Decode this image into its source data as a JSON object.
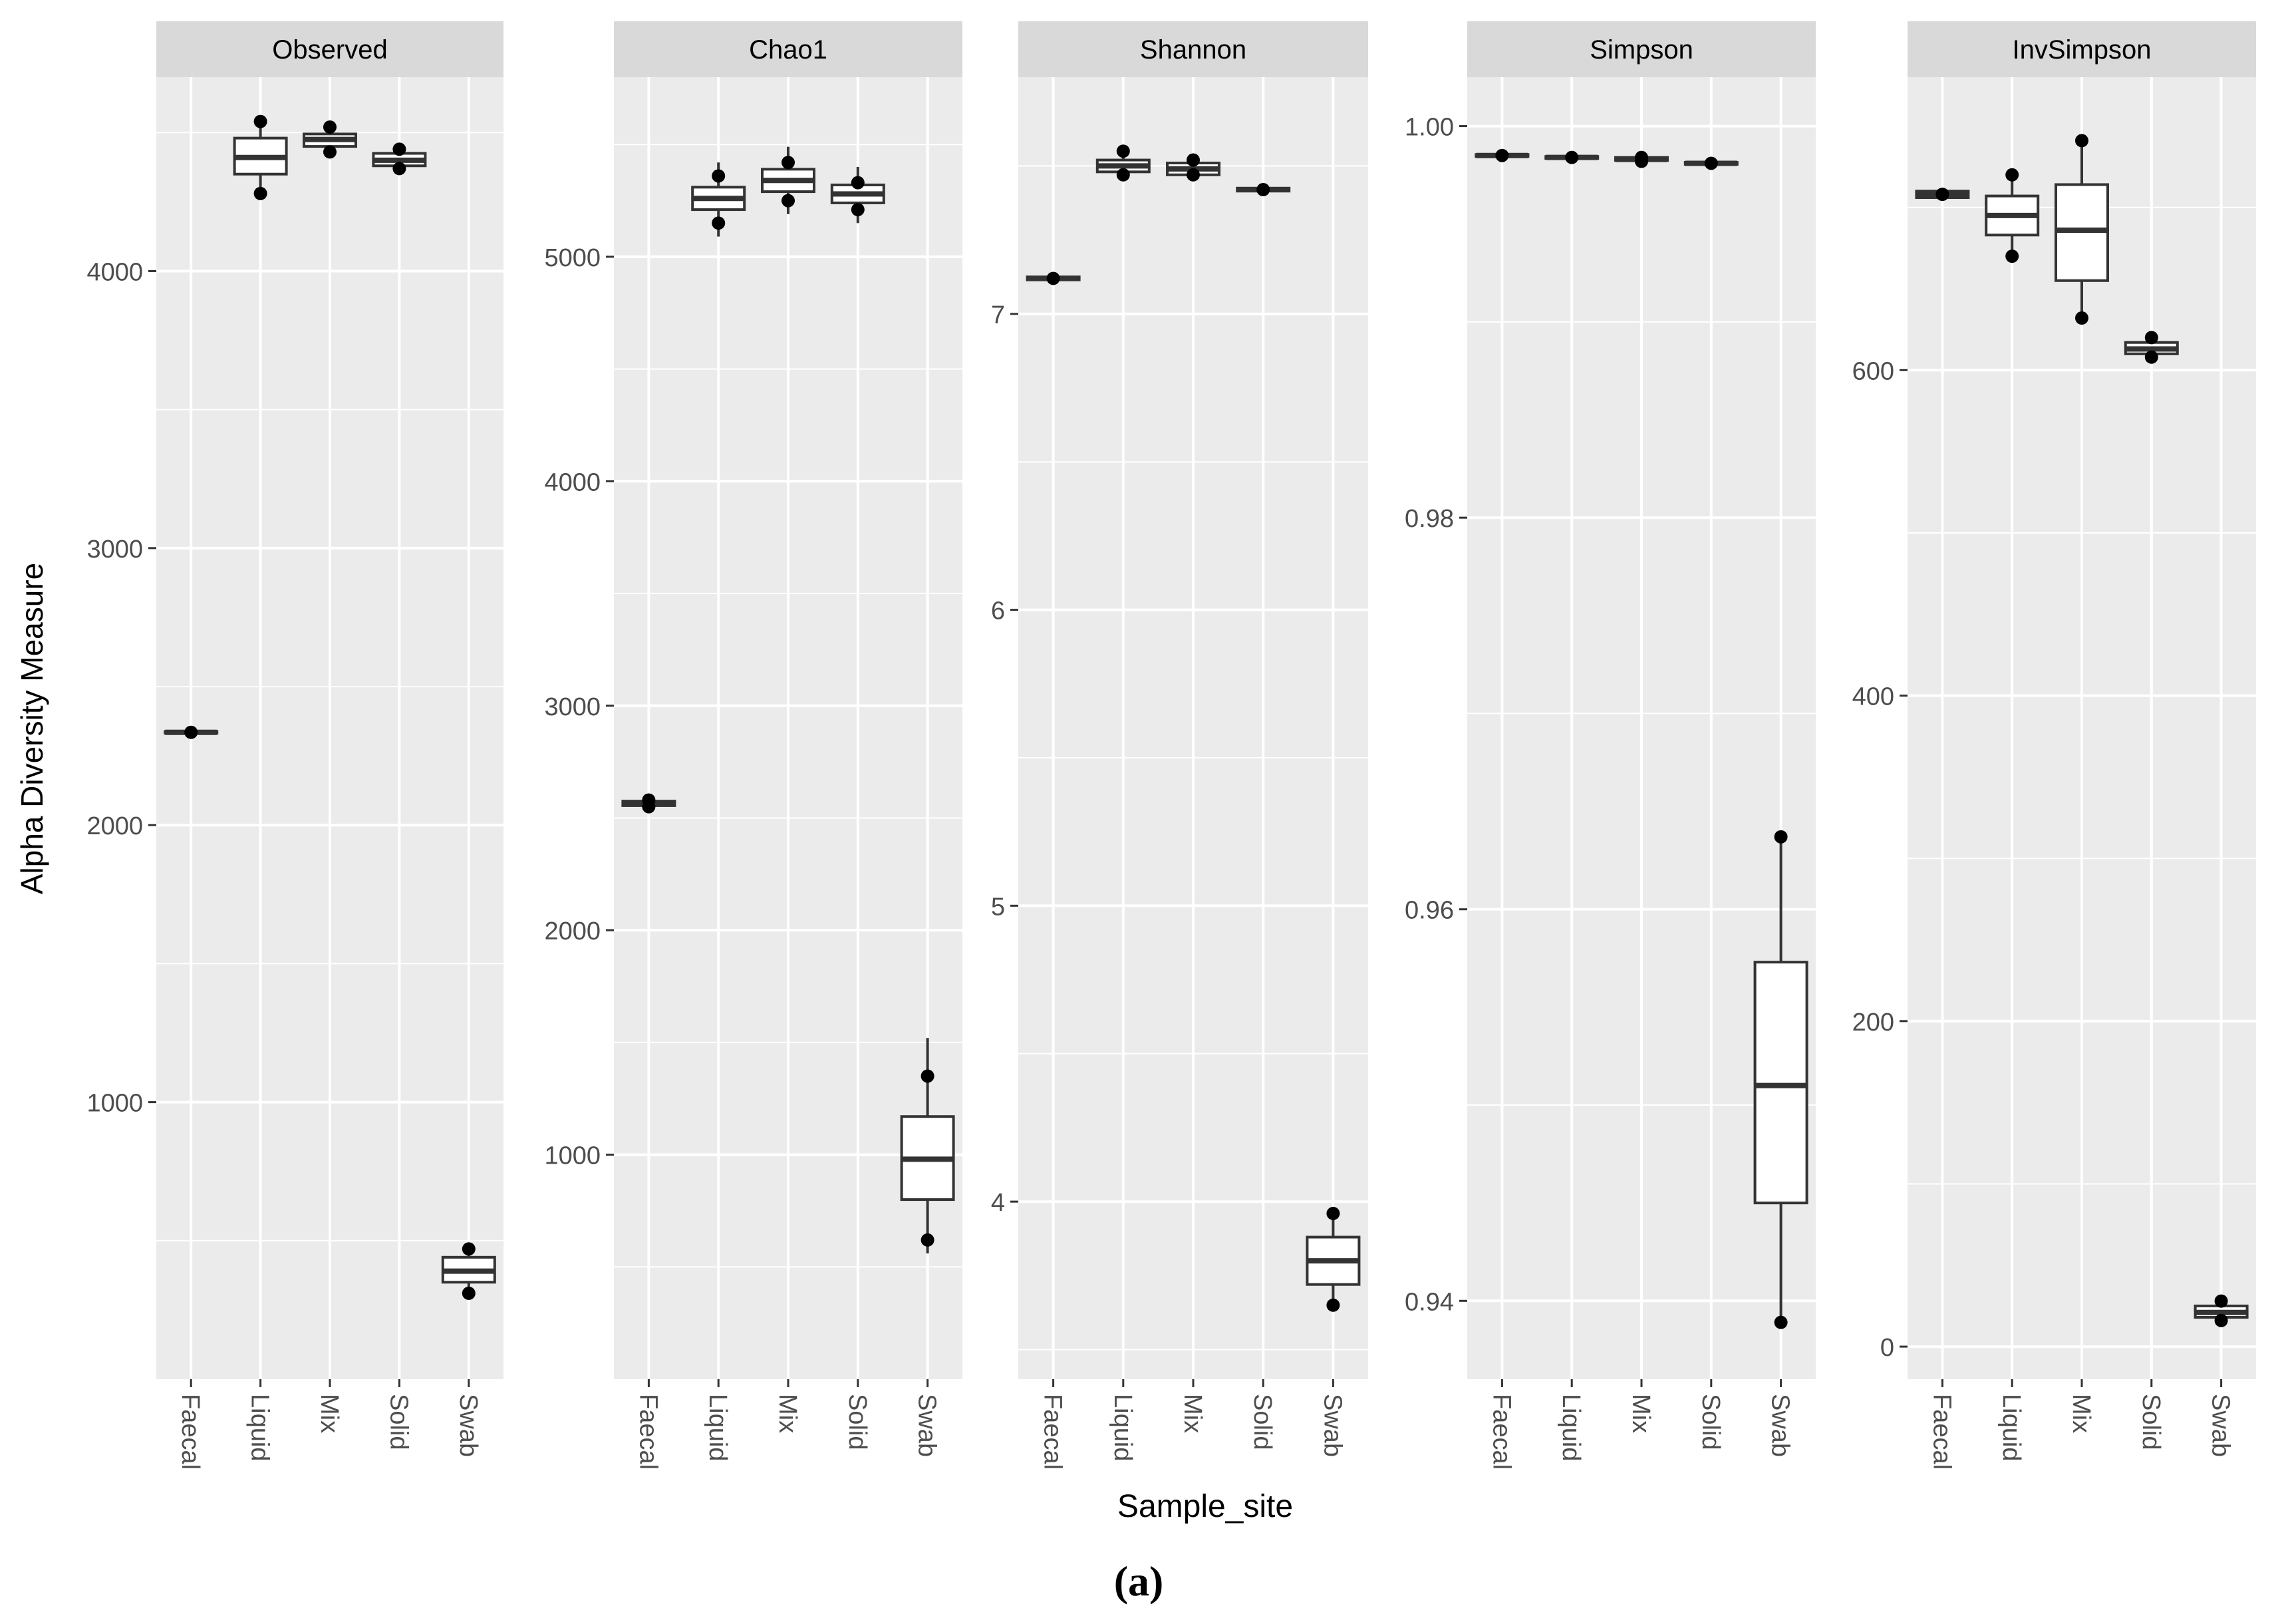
{
  "figure": {
    "y_axis_label": "Alpha Diversity Measure",
    "x_axis_label": "Sample_site",
    "caption": "(a)"
  },
  "colors": {
    "panel_background": "#ebebeb",
    "grid_major": "#ffffff",
    "strip_background": "#d9d9d9",
    "box_fill": "#ffffff",
    "stroke": "#333333",
    "text": "#4d4d4d",
    "title_text": "#000000"
  },
  "chart_data": [
    {
      "type": "box",
      "title": "Observed",
      "categories": [
        "Faecal",
        "Liquid",
        "Mix",
        "Solid",
        "Swab"
      ],
      "ylim": [
        0,
        4700
      ],
      "yticks": [
        1000,
        2000,
        3000,
        4000
      ],
      "ytick_labels": [
        "1000",
        "2000",
        "3000",
        "4000"
      ],
      "boxes": [
        {
          "category": "Faecal",
          "min": 2330,
          "q1": 2332,
          "median": 2335,
          "q3": 2338,
          "max": 2340,
          "points": [
            2335
          ]
        },
        {
          "category": "Liquid",
          "min": 4280,
          "q1": 4350,
          "median": 4410,
          "q3": 4480,
          "max": 4540,
          "points": [
            4540,
            4280
          ]
        },
        {
          "category": "Mix",
          "min": 4430,
          "q1": 4450,
          "median": 4475,
          "q3": 4495,
          "max": 4520,
          "points": [
            4520,
            4430
          ]
        },
        {
          "category": "Solid",
          "min": 4370,
          "q1": 4380,
          "median": 4400,
          "q3": 4425,
          "max": 4440,
          "points": [
            4440,
            4370
          ]
        },
        {
          "category": "Swab",
          "min": 310,
          "q1": 350,
          "median": 390,
          "q3": 440,
          "max": 470,
          "points": [
            470,
            310
          ]
        }
      ]
    },
    {
      "type": "box",
      "title": "Chao1",
      "categories": [
        "Faecal",
        "Liquid",
        "Mix",
        "Solid",
        "Swab"
      ],
      "ylim": [
        0,
        5800
      ],
      "yticks": [
        1000,
        2000,
        3000,
        4000,
        5000
      ],
      "ytick_labels": [
        "1000",
        "2000",
        "3000",
        "4000",
        "5000"
      ],
      "boxes": [
        {
          "category": "Faecal",
          "min": 2540,
          "q1": 2555,
          "median": 2565,
          "q3": 2575,
          "max": 2590,
          "points": [
            2580,
            2550
          ]
        },
        {
          "category": "Liquid",
          "min": 5090,
          "q1": 5210,
          "median": 5260,
          "q3": 5310,
          "max": 5420,
          "points": [
            5360,
            5150
          ]
        },
        {
          "category": "Mix",
          "min": 5190,
          "q1": 5290,
          "median": 5340,
          "q3": 5390,
          "max": 5490,
          "points": [
            5420,
            5250
          ]
        },
        {
          "category": "Solid",
          "min": 5150,
          "q1": 5240,
          "median": 5280,
          "q3": 5320,
          "max": 5400,
          "points": [
            5330,
            5210
          ]
        },
        {
          "category": "Swab",
          "min": 560,
          "q1": 800,
          "median": 980,
          "q3": 1170,
          "max": 1520,
          "points": [
            1350,
            620
          ]
        }
      ]
    },
    {
      "type": "box",
      "title": "Shannon",
      "categories": [
        "Faecal",
        "Liquid",
        "Mix",
        "Solid",
        "Swab"
      ],
      "ylim": [
        3.4,
        7.8
      ],
      "yticks": [
        4,
        5,
        6,
        7
      ],
      "ytick_labels": [
        "4",
        "5",
        "6",
        "7"
      ],
      "boxes": [
        {
          "category": "Faecal",
          "min": 7.11,
          "q1": 7.115,
          "median": 7.12,
          "q3": 7.125,
          "max": 7.13,
          "points": [
            7.12
          ]
        },
        {
          "category": "Liquid",
          "min": 7.47,
          "q1": 7.48,
          "median": 7.5,
          "q3": 7.52,
          "max": 7.55,
          "points": [
            7.55,
            7.47
          ]
        },
        {
          "category": "Mix",
          "min": 7.46,
          "q1": 7.47,
          "median": 7.49,
          "q3": 7.51,
          "max": 7.53,
          "points": [
            7.52,
            7.47
          ]
        },
        {
          "category": "Solid",
          "min": 7.41,
          "q1": 7.415,
          "median": 7.42,
          "q3": 7.425,
          "max": 7.43,
          "points": [
            7.42
          ]
        },
        {
          "category": "Swab",
          "min": 3.65,
          "q1": 3.72,
          "median": 3.8,
          "q3": 3.88,
          "max": 3.96,
          "points": [
            3.96,
            3.65
          ]
        }
      ]
    },
    {
      "type": "box",
      "title": "Simpson",
      "categories": [
        "Faecal",
        "Liquid",
        "Mix",
        "Solid",
        "Swab"
      ],
      "ylim": [
        0.936,
        1.0025
      ],
      "yticks": [
        0.94,
        0.96,
        0.98,
        1.0
      ],
      "ytick_labels": [
        "0.94",
        "0.96",
        "0.98",
        "1.00"
      ],
      "boxes": [
        {
          "category": "Faecal",
          "min": 0.9984,
          "q1": 0.99845,
          "median": 0.9985,
          "q3": 0.99855,
          "max": 0.9986,
          "points": [
            0.9985
          ]
        },
        {
          "category": "Liquid",
          "min": 0.9983,
          "q1": 0.99835,
          "median": 0.9984,
          "q3": 0.99845,
          "max": 0.9985,
          "points": [
            0.9984
          ]
        },
        {
          "category": "Mix",
          "min": 0.9982,
          "q1": 0.99825,
          "median": 0.9983,
          "q3": 0.9984,
          "max": 0.9985,
          "points": [
            0.9984,
            0.9982
          ]
        },
        {
          "category": "Solid",
          "min": 0.998,
          "q1": 0.99805,
          "median": 0.9981,
          "q3": 0.99815,
          "max": 0.9982,
          "points": [
            0.9981
          ]
        },
        {
          "category": "Swab",
          "min": 0.9389,
          "q1": 0.945,
          "median": 0.951,
          "q3": 0.9573,
          "max": 0.9637,
          "points": [
            0.9637,
            0.9389
          ]
        }
      ]
    },
    {
      "type": "box",
      "title": "InvSimpson",
      "categories": [
        "Faecal",
        "Liquid",
        "Mix",
        "Solid",
        "Swab"
      ],
      "ylim": [
        -20,
        780
      ],
      "yticks": [
        0,
        200,
        400,
        600
      ],
      "ytick_labels": [
        "0",
        "200",
        "400",
        "600"
      ],
      "boxes": [
        {
          "category": "Faecal",
          "min": 704,
          "q1": 706,
          "median": 708,
          "q3": 710,
          "max": 712,
          "points": [
            708
          ]
        },
        {
          "category": "Liquid",
          "min": 670,
          "q1": 683,
          "median": 695,
          "q3": 707,
          "max": 720,
          "points": [
            720,
            670
          ]
        },
        {
          "category": "Mix",
          "min": 632,
          "q1": 655,
          "median": 686,
          "q3": 714,
          "max": 741,
          "points": [
            741,
            632
          ]
        },
        {
          "category": "Solid",
          "min": 608,
          "q1": 610,
          "median": 613,
          "q3": 617,
          "max": 620,
          "points": [
            620,
            608
          ]
        },
        {
          "category": "Swab",
          "min": 16,
          "q1": 18,
          "median": 21,
          "q3": 25,
          "max": 28,
          "points": [
            28,
            16
          ]
        }
      ]
    }
  ]
}
